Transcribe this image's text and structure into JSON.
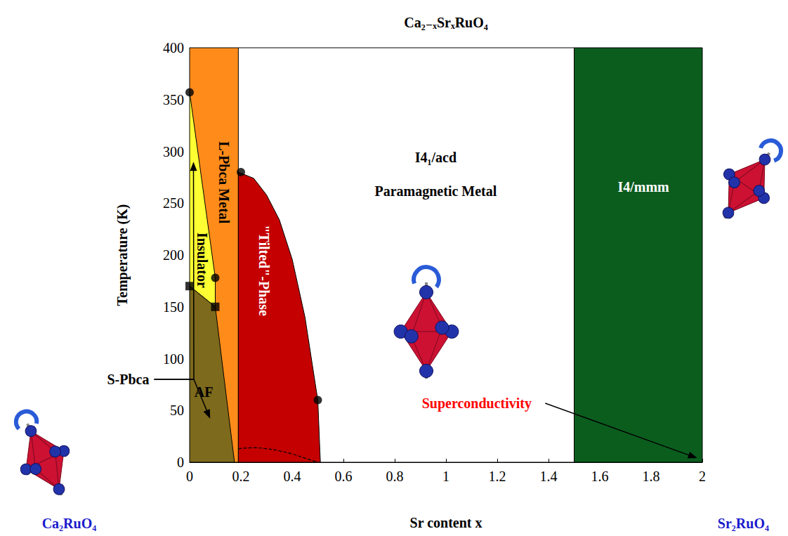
{
  "chart_data": {
    "type": "phase_diagram",
    "title": "Ca₂₋ₓSrₓRuO₄",
    "x_label": "Sr content x",
    "y_label": "Temperature (K)",
    "xlim": [
      0,
      2
    ],
    "xticks": [
      0,
      0.2,
      0.4,
      0.6,
      0.8,
      1,
      1.2,
      1.4,
      1.6,
      1.8,
      2
    ],
    "ylim": [
      0,
      400
    ],
    "yticks": [
      0,
      50,
      100,
      150,
      200,
      250,
      300,
      350,
      400
    ],
    "grid": false,
    "regions": [
      {
        "name": "L-Pbca Metal",
        "color": "#ff8c1a",
        "boundary": [
          [
            0,
            0
          ],
          [
            0.19,
            0
          ],
          [
            0.19,
            400
          ],
          [
            0,
            400
          ]
        ],
        "label_at": [
          0.135,
          270
        ]
      },
      {
        "name": "Insulator",
        "color": "#ffff33",
        "boundary": [
          [
            0,
            170
          ],
          [
            0,
            357
          ],
          [
            0.1,
            178
          ],
          [
            0.1,
            150
          ]
        ],
        "label_at": [
          0.05,
          195
        ]
      },
      {
        "name": "AF",
        "color": "#7d6a1c",
        "boundary": [
          [
            0,
            0
          ],
          [
            0,
            170
          ],
          [
            0.1,
            150
          ],
          [
            0.175,
            0
          ]
        ],
        "label_at": [
          0.055,
          68
        ]
      },
      {
        "name": "\"Tilted\"-Phase",
        "color": "#c40000",
        "boundary": [
          [
            0.19,
            0
          ],
          [
            0.19,
            280
          ],
          [
            0.25,
            274
          ],
          [
            0.3,
            258
          ],
          [
            0.35,
            234
          ],
          [
            0.4,
            196
          ],
          [
            0.45,
            140
          ],
          [
            0.5,
            60
          ],
          [
            0.51,
            0
          ]
        ],
        "label_at": [
          0.29,
          185
        ]
      },
      {
        "name": "I4/mmm",
        "color": "#0b5d1e",
        "boundary": [
          [
            1.5,
            0
          ],
          [
            2,
            0
          ],
          [
            2,
            400
          ],
          [
            1.5,
            400
          ]
        ],
        "label_at": [
          1.77,
          266
        ]
      }
    ],
    "curves": [
      {
        "line_style": "dashed",
        "values": [
          [
            0.19,
            13
          ],
          [
            0.25,
            14
          ],
          [
            0.3,
            13
          ],
          [
            0.35,
            11
          ],
          [
            0.4,
            8
          ],
          [
            0.45,
            4
          ],
          [
            0.5,
            0
          ]
        ]
      }
    ],
    "points": [
      {
        "marker": "circle",
        "values": [
          [
            0,
            357
          ],
          [
            0.1,
            178
          ],
          [
            0.2,
            280
          ],
          [
            0.5,
            60
          ]
        ]
      },
      {
        "marker": "square",
        "values": [
          [
            0,
            170
          ],
          [
            0.1,
            150
          ]
        ]
      }
    ],
    "annotations": [
      {
        "text": "I4₁/acd",
        "x": 0.96,
        "y": 294
      },
      {
        "text": "Paramagnetic Metal",
        "x": 0.96,
        "y": 262
      },
      {
        "text": "S-Pbca",
        "x": -0.24,
        "y": 80,
        "arrows": [
          [
            0.015,
            290
          ],
          [
            0.08,
            42
          ]
        ]
      },
      {
        "text": "Superconductivity",
        "x": 1.12,
        "y": 57,
        "color": "#ff0000",
        "arrows": [
          [
            1.98,
            4
          ]
        ]
      },
      {
        "text": "Ca₂RuO₄",
        "x": -0.47,
        "y": -59,
        "color": "#1a1acc"
      },
      {
        "text": "Sr₂RuO₄",
        "x": 2.16,
        "y": -59,
        "color": "#1a1acc"
      }
    ]
  }
}
